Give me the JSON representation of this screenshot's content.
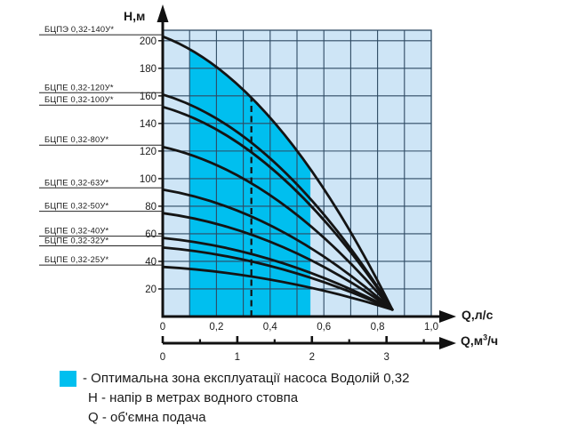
{
  "colors": {
    "optimal_zone": "#00BFEF",
    "plot_background": "#CEE5F6",
    "grid_line": "#2E4A63",
    "curve": "#141414",
    "axis": "#111111",
    "text": "#1A1A1A"
  },
  "chart_data": {
    "type": "line",
    "title": "",
    "axes": {
      "y": {
        "label": "Н,м",
        "tick_values": [
          20,
          40,
          60,
          80,
          100,
          120,
          140,
          160,
          180,
          200
        ],
        "range": [
          0,
          207
        ],
        "unit": "м"
      },
      "x_primary": {
        "label": "Q,л/с",
        "tick_values": [
          0,
          0.2,
          0.4,
          0.6,
          0.8,
          1.0
        ],
        "tick_labels": [
          "0",
          "0,2",
          "0,4",
          "0,6",
          "0,8",
          "1,0"
        ],
        "grid_step": 0.1,
        "range": [
          0,
          1.0
        ],
        "unit": "л/с"
      },
      "x_secondary": {
        "label_prefix": "Q,м",
        "label_sup": "3",
        "label_suffix": "/ч",
        "tick_values": [
          0,
          1,
          2,
          3
        ],
        "tick_labels": [
          "0",
          "1",
          "2",
          "3"
        ],
        "minor_tick_values": [
          0.5,
          1.5,
          2.5,
          3.5
        ],
        "l_per_s_per_m3h": 0.27778,
        "unit": "м3/ч"
      }
    },
    "series": [
      {
        "name": "БЦПЭ 0,32-140У*",
        "head_at_q0_m": 203
      },
      {
        "name": "БЦПЕ 0,32-120У*",
        "head_at_q0_m": 161
      },
      {
        "name": "БЦПЕ 0,32-100У*",
        "head_at_q0_m": 152
      },
      {
        "name": "БЦПЕ 0,32-80У*",
        "head_at_q0_m": 123
      },
      {
        "name": "БЦПЕ 0,32-63У*",
        "head_at_q0_m": 92
      },
      {
        "name": "БЦПЕ 0,32-50У*",
        "head_at_q0_m": 75
      },
      {
        "name": "БЦПЕ 0,32-40У*",
        "head_at_q0_m": 57
      },
      {
        "name": "БЦПЕ 0,32-32У*",
        "head_at_q0_m": 50
      },
      {
        "name": "БЦПЕ 0,32-25У*",
        "head_at_q0_m": 36
      }
    ],
    "convergence_point": {
      "q_l_s": 0.855,
      "h_m": 5
    },
    "optimal_zone_q_l_s": {
      "from": 0.1,
      "to": 0.55
    },
    "nominal_flow_marker_q_l_s": 0.33,
    "grid": true,
    "legend_position": "bottom-left"
  },
  "legend": {
    "zone_line": "- Оптимальна зона експлуатації насоса Водолій 0,32",
    "h_line": "Н - напір в метрах водного стовпа",
    "q_line": "Q - об'ємна подача"
  }
}
